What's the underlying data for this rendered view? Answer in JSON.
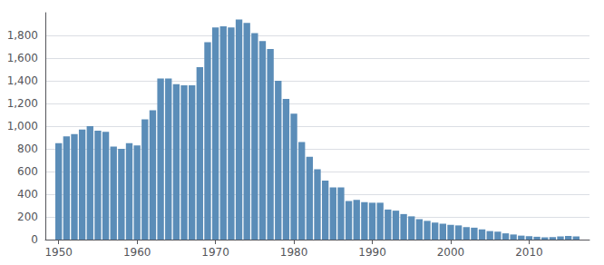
{
  "chart_data": {
    "type": "bar",
    "x": [
      1950,
      1951,
      1952,
      1953,
      1954,
      1955,
      1956,
      1957,
      1958,
      1959,
      1960,
      1961,
      1962,
      1963,
      1964,
      1965,
      1966,
      1967,
      1968,
      1969,
      1970,
      1971,
      1972,
      1973,
      1974,
      1975,
      1976,
      1977,
      1978,
      1979,
      1980,
      1981,
      1982,
      1983,
      1984,
      1985,
      1986,
      1987,
      1988,
      1989,
      1990,
      1991,
      1992,
      1993,
      1994,
      1995,
      1996,
      1997,
      1998,
      1999,
      2000,
      2001,
      2002,
      2003,
      2004,
      2005,
      2006,
      2007,
      2008,
      2009,
      2010,
      2011,
      2012,
      2013,
      2014,
      2015,
      2016
    ],
    "values": [
      850,
      910,
      930,
      970,
      1000,
      960,
      950,
      820,
      800,
      850,
      830,
      1060,
      1140,
      1420,
      1420,
      1370,
      1360,
      1360,
      1520,
      1740,
      1870,
      1880,
      1870,
      1940,
      1910,
      1820,
      1750,
      1680,
      1400,
      1240,
      1110,
      860,
      730,
      620,
      520,
      460,
      460,
      340,
      350,
      330,
      325,
      325,
      265,
      255,
      225,
      205,
      180,
      165,
      150,
      140,
      130,
      125,
      110,
      105,
      90,
      75,
      70,
      55,
      45,
      35,
      30,
      25,
      20,
      22,
      28,
      32,
      28
    ],
    "color": "#5b8db8",
    "xlim": [
      1948.3,
      2017.7
    ],
    "xticks": [
      1950,
      1960,
      1970,
      1980,
      1990,
      2000,
      2010
    ],
    "ylim": [
      0,
      2000
    ],
    "yticks": [
      0,
      200,
      400,
      600,
      800,
      {
        "value": 1000,
        "label": "1,000"
      },
      {
        "value": 1200,
        "label": "1,200"
      },
      {
        "value": 1400,
        "label": "1,400"
      },
      {
        "value": 1600,
        "label": "1,600"
      },
      {
        "value": 1800,
        "label": "1,800"
      }
    ],
    "grid": true
  }
}
